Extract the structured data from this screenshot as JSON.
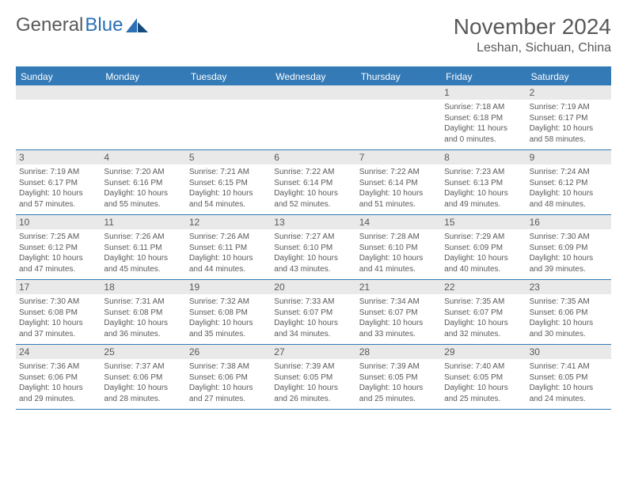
{
  "logo": {
    "text_gray": "General",
    "text_blue": "Blue"
  },
  "header": {
    "month_title": "November 2024",
    "location": "Leshan, Sichuan, China"
  },
  "colors": {
    "accent": "#347ab6",
    "text": "#595959",
    "daynum_bg": "#e9e9e9",
    "background": "#ffffff"
  },
  "day_labels": [
    "Sunday",
    "Monday",
    "Tuesday",
    "Wednesday",
    "Thursday",
    "Friday",
    "Saturday"
  ],
  "weeks": [
    [
      {
        "n": "",
        "lines": []
      },
      {
        "n": "",
        "lines": []
      },
      {
        "n": "",
        "lines": []
      },
      {
        "n": "",
        "lines": []
      },
      {
        "n": "",
        "lines": []
      },
      {
        "n": "1",
        "lines": [
          "Sunrise: 7:18 AM",
          "Sunset: 6:18 PM",
          "Daylight: 11 hours",
          "and 0 minutes."
        ]
      },
      {
        "n": "2",
        "lines": [
          "Sunrise: 7:19 AM",
          "Sunset: 6:17 PM",
          "Daylight: 10 hours",
          "and 58 minutes."
        ]
      }
    ],
    [
      {
        "n": "3",
        "lines": [
          "Sunrise: 7:19 AM",
          "Sunset: 6:17 PM",
          "Daylight: 10 hours",
          "and 57 minutes."
        ]
      },
      {
        "n": "4",
        "lines": [
          "Sunrise: 7:20 AM",
          "Sunset: 6:16 PM",
          "Daylight: 10 hours",
          "and 55 minutes."
        ]
      },
      {
        "n": "5",
        "lines": [
          "Sunrise: 7:21 AM",
          "Sunset: 6:15 PM",
          "Daylight: 10 hours",
          "and 54 minutes."
        ]
      },
      {
        "n": "6",
        "lines": [
          "Sunrise: 7:22 AM",
          "Sunset: 6:14 PM",
          "Daylight: 10 hours",
          "and 52 minutes."
        ]
      },
      {
        "n": "7",
        "lines": [
          "Sunrise: 7:22 AM",
          "Sunset: 6:14 PM",
          "Daylight: 10 hours",
          "and 51 minutes."
        ]
      },
      {
        "n": "8",
        "lines": [
          "Sunrise: 7:23 AM",
          "Sunset: 6:13 PM",
          "Daylight: 10 hours",
          "and 49 minutes."
        ]
      },
      {
        "n": "9",
        "lines": [
          "Sunrise: 7:24 AM",
          "Sunset: 6:12 PM",
          "Daylight: 10 hours",
          "and 48 minutes."
        ]
      }
    ],
    [
      {
        "n": "10",
        "lines": [
          "Sunrise: 7:25 AM",
          "Sunset: 6:12 PM",
          "Daylight: 10 hours",
          "and 47 minutes."
        ]
      },
      {
        "n": "11",
        "lines": [
          "Sunrise: 7:26 AM",
          "Sunset: 6:11 PM",
          "Daylight: 10 hours",
          "and 45 minutes."
        ]
      },
      {
        "n": "12",
        "lines": [
          "Sunrise: 7:26 AM",
          "Sunset: 6:11 PM",
          "Daylight: 10 hours",
          "and 44 minutes."
        ]
      },
      {
        "n": "13",
        "lines": [
          "Sunrise: 7:27 AM",
          "Sunset: 6:10 PM",
          "Daylight: 10 hours",
          "and 43 minutes."
        ]
      },
      {
        "n": "14",
        "lines": [
          "Sunrise: 7:28 AM",
          "Sunset: 6:10 PM",
          "Daylight: 10 hours",
          "and 41 minutes."
        ]
      },
      {
        "n": "15",
        "lines": [
          "Sunrise: 7:29 AM",
          "Sunset: 6:09 PM",
          "Daylight: 10 hours",
          "and 40 minutes."
        ]
      },
      {
        "n": "16",
        "lines": [
          "Sunrise: 7:30 AM",
          "Sunset: 6:09 PM",
          "Daylight: 10 hours",
          "and 39 minutes."
        ]
      }
    ],
    [
      {
        "n": "17",
        "lines": [
          "Sunrise: 7:30 AM",
          "Sunset: 6:08 PM",
          "Daylight: 10 hours",
          "and 37 minutes."
        ]
      },
      {
        "n": "18",
        "lines": [
          "Sunrise: 7:31 AM",
          "Sunset: 6:08 PM",
          "Daylight: 10 hours",
          "and 36 minutes."
        ]
      },
      {
        "n": "19",
        "lines": [
          "Sunrise: 7:32 AM",
          "Sunset: 6:08 PM",
          "Daylight: 10 hours",
          "and 35 minutes."
        ]
      },
      {
        "n": "20",
        "lines": [
          "Sunrise: 7:33 AM",
          "Sunset: 6:07 PM",
          "Daylight: 10 hours",
          "and 34 minutes."
        ]
      },
      {
        "n": "21",
        "lines": [
          "Sunrise: 7:34 AM",
          "Sunset: 6:07 PM",
          "Daylight: 10 hours",
          "and 33 minutes."
        ]
      },
      {
        "n": "22",
        "lines": [
          "Sunrise: 7:35 AM",
          "Sunset: 6:07 PM",
          "Daylight: 10 hours",
          "and 32 minutes."
        ]
      },
      {
        "n": "23",
        "lines": [
          "Sunrise: 7:35 AM",
          "Sunset: 6:06 PM",
          "Daylight: 10 hours",
          "and 30 minutes."
        ]
      }
    ],
    [
      {
        "n": "24",
        "lines": [
          "Sunrise: 7:36 AM",
          "Sunset: 6:06 PM",
          "Daylight: 10 hours",
          "and 29 minutes."
        ]
      },
      {
        "n": "25",
        "lines": [
          "Sunrise: 7:37 AM",
          "Sunset: 6:06 PM",
          "Daylight: 10 hours",
          "and 28 minutes."
        ]
      },
      {
        "n": "26",
        "lines": [
          "Sunrise: 7:38 AM",
          "Sunset: 6:06 PM",
          "Daylight: 10 hours",
          "and 27 minutes."
        ]
      },
      {
        "n": "27",
        "lines": [
          "Sunrise: 7:39 AM",
          "Sunset: 6:05 PM",
          "Daylight: 10 hours",
          "and 26 minutes."
        ]
      },
      {
        "n": "28",
        "lines": [
          "Sunrise: 7:39 AM",
          "Sunset: 6:05 PM",
          "Daylight: 10 hours",
          "and 25 minutes."
        ]
      },
      {
        "n": "29",
        "lines": [
          "Sunrise: 7:40 AM",
          "Sunset: 6:05 PM",
          "Daylight: 10 hours",
          "and 25 minutes."
        ]
      },
      {
        "n": "30",
        "lines": [
          "Sunrise: 7:41 AM",
          "Sunset: 6:05 PM",
          "Daylight: 10 hours",
          "and 24 minutes."
        ]
      }
    ]
  ]
}
